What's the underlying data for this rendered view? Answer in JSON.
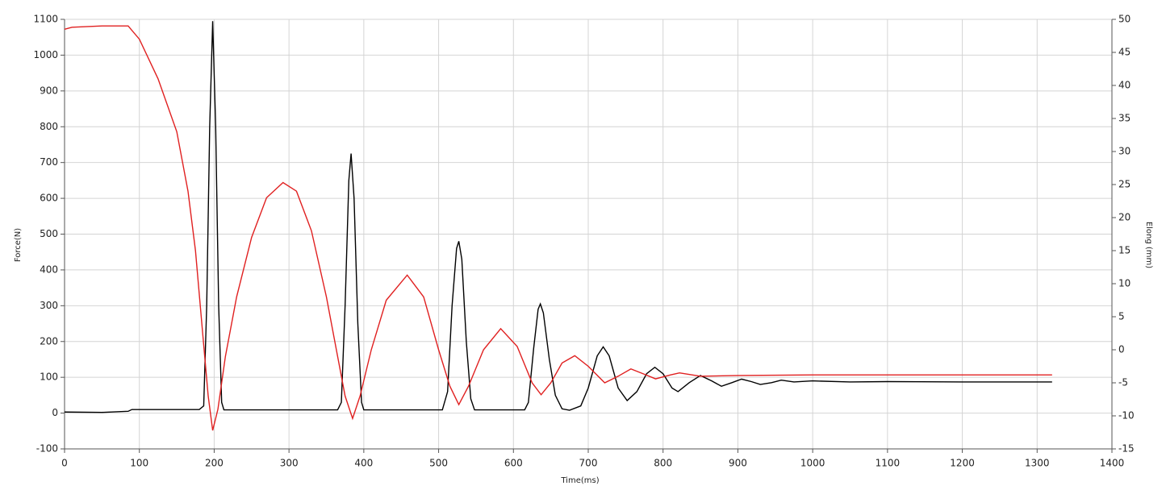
{
  "chart_data": {
    "type": "line",
    "xlabel": "Time(ms)",
    "ylabel": "Force(N)",
    "y2label": "Elong (mm)",
    "xlim": [
      0,
      1400
    ],
    "xticks": [
      0,
      100,
      200,
      300,
      400,
      500,
      600,
      700,
      800,
      900,
      1000,
      1100,
      1200,
      1300,
      1400
    ],
    "ylim": [
      -100,
      1100
    ],
    "yticks": [
      -100,
      0,
      100,
      200,
      300,
      400,
      500,
      600,
      700,
      800,
      900,
      1000,
      1100
    ],
    "y2lim": [
      -15,
      50
    ],
    "y2ticks": [
      -15,
      -10,
      -5,
      0,
      5,
      10,
      15,
      20,
      25,
      30,
      35,
      40,
      45,
      50
    ],
    "grid": true,
    "series": [
      {
        "color": "#000000",
        "x": [
          0,
          50,
          85,
          90,
          180,
          186,
          190,
          194,
          198,
          202,
          206,
          210,
          213,
          365,
          370,
          375,
          380,
          383,
          387,
          392,
          397,
          400,
          505,
          512,
          518,
          524,
          527,
          531,
          537,
          543,
          548,
          615,
          620,
          627,
          633,
          636,
          640,
          648,
          656,
          665,
          675,
          690,
          700,
          712,
          720,
          728,
          740,
          752,
          765,
          778,
          789,
          800,
          812,
          820,
          835,
          850,
          865,
          878,
          892,
          905,
          918,
          930,
          945,
          958,
          975,
          1000,
          1050,
          1100,
          1200,
          1320
        ],
        "values": [
          3,
          2,
          5,
          10,
          10,
          20,
          300,
          800,
          1095,
          800,
          300,
          30,
          9,
          9,
          30,
          300,
          650,
          725,
          600,
          250,
          30,
          9,
          9,
          60,
          300,
          460,
          480,
          430,
          200,
          40,
          9,
          9,
          30,
          180,
          290,
          305,
          280,
          150,
          50,
          12,
          8,
          20,
          70,
          160,
          185,
          160,
          70,
          35,
          60,
          110,
          128,
          110,
          70,
          60,
          85,
          105,
          90,
          75,
          85,
          95,
          88,
          80,
          85,
          92,
          87,
          90,
          87,
          88,
          87,
          87
        ]
      },
      {
        "color": "#e02020",
        "axis": "y2",
        "x": [
          0,
          10,
          50,
          85,
          100,
          125,
          150,
          165,
          175,
          185,
          192,
          198,
          205,
          215,
          230,
          250,
          270,
          292,
          310,
          330,
          350,
          365,
          375,
          385,
          395,
          410,
          430,
          458,
          480,
          500,
          515,
          527,
          540,
          560,
          583,
          605,
          625,
          637,
          650,
          665,
          682,
          700,
          722,
          740,
          757,
          775,
          790,
          810,
          822,
          850,
          900,
          1000,
          1100,
          1200,
          1320
        ],
        "values": [
          48.5,
          48.8,
          49,
          49,
          47,
          41,
          33,
          24,
          15,
          2,
          -7,
          -12.2,
          -9,
          -1,
          8,
          17,
          23,
          25.3,
          24,
          18,
          8,
          -1,
          -7,
          -10.4,
          -7,
          0,
          7.5,
          11.3,
          8,
          0,
          -5.5,
          -8.3,
          -5.5,
          0,
          3.2,
          0.5,
          -5,
          -6.8,
          -5,
          -2,
          -0.9,
          -2.5,
          -5,
          -4,
          -2.9,
          -3.7,
          -4.4,
          -3.8,
          -3.5,
          -4,
          -3.9,
          -3.8,
          -3.8,
          -3.8,
          -3.8
        ]
      }
    ]
  }
}
